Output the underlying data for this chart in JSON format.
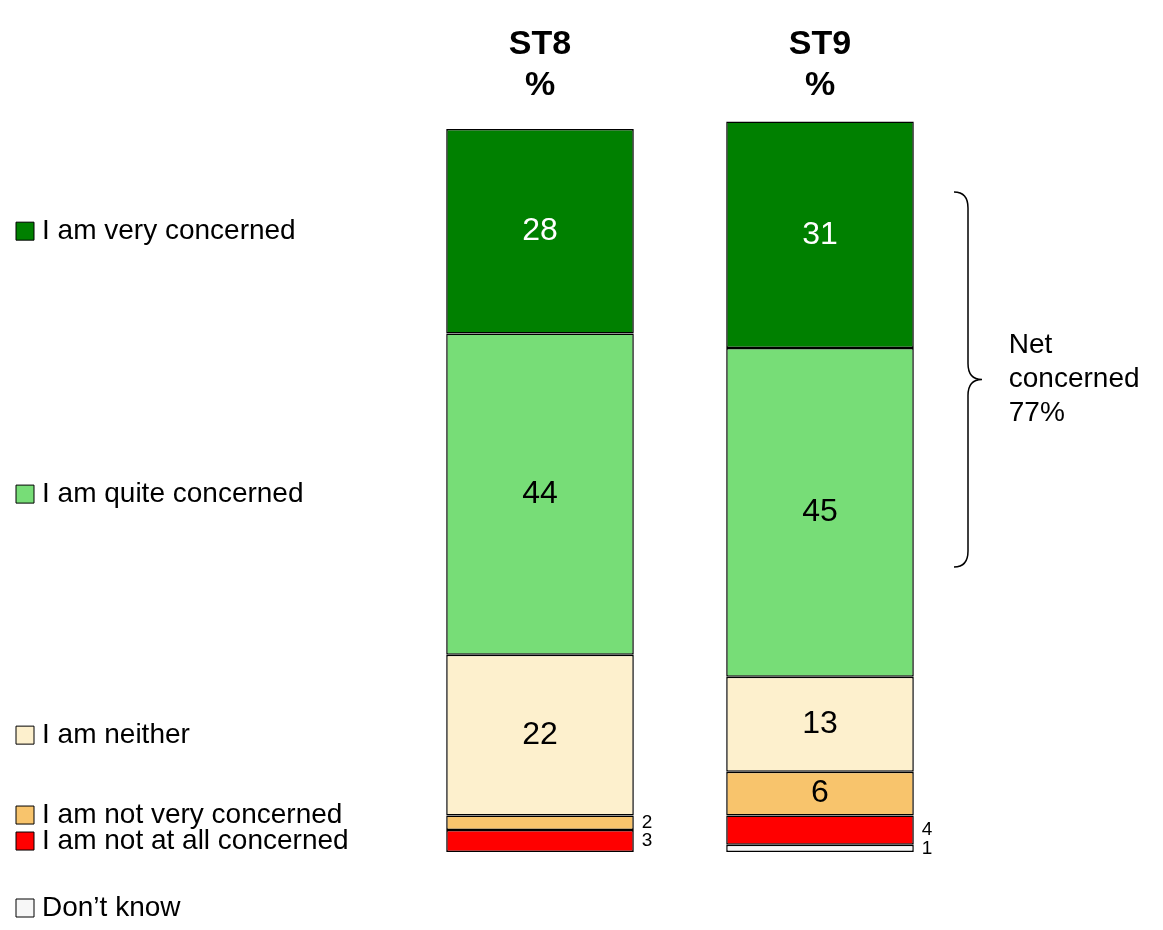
{
  "chart_data": {
    "type": "bar",
    "stacked": true,
    "categories": [
      "ST8 %",
      "ST9 %"
    ],
    "series": [
      {
        "name": "Don’t know",
        "color": "#f7f7f7",
        "values": [
          null,
          1
        ]
      },
      {
        "name": "I am not at all concerned",
        "color": "#ff0000",
        "values": [
          3,
          4
        ]
      },
      {
        "name": "I am not very concerned",
        "color": "#f8c46c",
        "values": [
          2,
          6
        ]
      },
      {
        "name": "I am neither",
        "color": "#fdf0cd",
        "values": [
          22,
          13
        ]
      },
      {
        "name": "I am quite concerned",
        "color": "#77dd77",
        "values": [
          44,
          45
        ]
      },
      {
        "name": "I am very concerned",
        "color": "#008000",
        "values": [
          28,
          31
        ]
      }
    ],
    "ylim": [
      0,
      100
    ],
    "tick_labels": "x",
    "data_labels": true,
    "legend": "left",
    "grid": false,
    "annotations": [
      "Net concerned 77%"
    ]
  }
}
